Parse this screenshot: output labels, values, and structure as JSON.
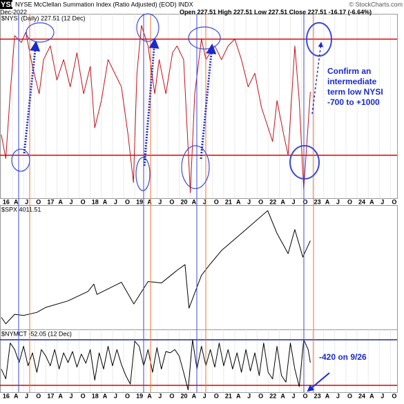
{
  "header": {
    "symbol": "YSI",
    "title": "NYSE McClellan Summation Index (Ratio Adjusted) (EOD) INDX",
    "date": "Dec-2022",
    "quote": "Open 227.51  High 227.51  Low 227.51  Close 227.51  -16.17 (-6.64%)",
    "credit": "© StockCharts.com"
  },
  "chart_data": [
    {
      "type": "line",
      "ylim": [
        -1330,
        1370
      ],
      "xlim": [
        2015.97,
        2024.9
      ],
      "grid": true,
      "x": [
        2016.0,
        2016.1,
        2016.2,
        2016.3,
        2016.45,
        2016.55,
        2016.7,
        2016.85,
        2016.95,
        2017.1,
        2017.25,
        2017.4,
        2017.55,
        2017.7,
        2017.85,
        2018.0,
        2018.1,
        2018.25,
        2018.4,
        2018.55,
        2018.7,
        2018.85,
        2018.97,
        2019.05,
        2019.15,
        2019.3,
        2019.45,
        2019.55,
        2019.7,
        2019.85,
        2019.95,
        2020.1,
        2020.2,
        2020.25,
        2020.35,
        2020.5,
        2020.6,
        2020.8,
        2020.95,
        2021.1,
        2021.25,
        2021.4,
        2021.55,
        2021.7,
        2021.85,
        2022.0,
        2022.1,
        2022.2,
        2022.35,
        2022.45,
        2022.6,
        2022.7,
        2022.8,
        2022.95
      ],
      "series": [
        {
          "name": "$NYSI (Daily) 227.51 (12 Dec)",
          "color": "#c0101a",
          "values": [
            -400,
            -750,
            200,
            1050,
            950,
            1100,
            600,
            200,
            700,
            900,
            400,
            700,
            300,
            800,
            200,
            600,
            -300,
            100,
            700,
            500,
            300,
            -400,
            -1100,
            500,
            1200,
            900,
            200,
            700,
            200,
            800,
            900,
            700,
            -600,
            -1250,
            200,
            1000,
            700,
            900,
            700,
            900,
            1000,
            700,
            300,
            500,
            0,
            -300,
            -500,
            100,
            -400,
            -700,
            900,
            100,
            -1200,
            227.51
          ]
        }
      ],
      "hlines": [
        {
          "value": 1000,
          "color": "#e00000"
        },
        {
          "value": -700,
          "color": "#e00000"
        }
      ],
      "xticks": [
        {
          "value": 2016,
          "label": "16"
        },
        {
          "value": 2016.25,
          "label": "A"
        },
        {
          "value": 2016.5,
          "label": "J"
        },
        {
          "value": 2016.75,
          "label": "O"
        },
        {
          "value": 2017,
          "label": "17"
        },
        {
          "value": 2017.25,
          "label": "A"
        },
        {
          "value": 2017.5,
          "label": "J"
        },
        {
          "value": 2017.75,
          "label": "O"
        },
        {
          "value": 2018,
          "label": "18"
        },
        {
          "value": 2018.25,
          "label": "A"
        },
        {
          "value": 2018.5,
          "label": "J"
        },
        {
          "value": 2018.75,
          "label": "O"
        },
        {
          "value": 2019,
          "label": "19"
        },
        {
          "value": 2019.25,
          "label": "A"
        },
        {
          "value": 2019.5,
          "label": "J"
        },
        {
          "value": 2019.75,
          "label": "O"
        },
        {
          "value": 2020,
          "label": "20"
        },
        {
          "value": 2020.25,
          "label": "A"
        },
        {
          "value": 2020.5,
          "label": "J"
        },
        {
          "value": 2020.75,
          "label": "O"
        },
        {
          "value": 2021,
          "label": "21"
        },
        {
          "value": 2021.25,
          "label": "A"
        },
        {
          "value": 2021.5,
          "label": "J"
        },
        {
          "value": 2021.75,
          "label": "O"
        },
        {
          "value": 2022,
          "label": "22"
        },
        {
          "value": 2022.25,
          "label": "A"
        },
        {
          "value": 2022.5,
          "label": "J"
        },
        {
          "value": 2022.75,
          "label": "O"
        },
        {
          "value": 2023,
          "label": "23"
        },
        {
          "value": 2023.25,
          "label": "A"
        },
        {
          "value": 2023.5,
          "label": "J"
        },
        {
          "value": 2023.75,
          "label": "O"
        },
        {
          "value": 2024,
          "label": "24"
        },
        {
          "value": 2024.25,
          "label": "A"
        },
        {
          "value": 2024.5,
          "label": "J"
        },
        {
          "value": 2024.75,
          "label": "O"
        }
      ],
      "annotation": [
        "Confirm an",
        "intermediate",
        "term low NYSI",
        "-700 to +1000"
      ]
    },
    {
      "type": "line",
      "ylim": [
        1683,
        4941
      ],
      "xlim": [
        2015.97,
        2024.9
      ],
      "grid": true,
      "x": [
        2016.0,
        2016.1,
        2016.3,
        2016.5,
        2016.8,
        2017.0,
        2017.5,
        2017.95,
        2018.08,
        2018.15,
        2018.7,
        2018.98,
        2019.3,
        2019.6,
        2019.95,
        2020.13,
        2020.22,
        2020.5,
        2020.7,
        2020.95,
        2021.5,
        2021.99,
        2022.2,
        2022.45,
        2022.6,
        2022.78,
        2022.95
      ],
      "series": [
        {
          "name": "$SPX 4011.51",
          "color": "#000000",
          "values": [
            2000,
            1830,
            2080,
            2050,
            2130,
            2260,
            2430,
            2680,
            2870,
            2600,
            2920,
            2350,
            2940,
            2900,
            3230,
            3380,
            2240,
            3100,
            3400,
            3750,
            4300,
            4796,
            4200,
            3670,
            4300,
            3580,
            4011.51
          ]
        }
      ]
    },
    {
      "type": "line",
      "ylim": [
        -506,
        459
      ],
      "xlim": [
        2015.97,
        2024.9
      ],
      "grid": true,
      "x": [
        2016.0,
        2016.1,
        2016.2,
        2016.3,
        2016.4,
        2016.5,
        2016.6,
        2016.7,
        2016.8,
        2016.9,
        2017.0,
        2017.1,
        2017.2,
        2017.3,
        2017.4,
        2017.5,
        2017.6,
        2017.7,
        2017.8,
        2017.9,
        2018.0,
        2018.1,
        2018.2,
        2018.3,
        2018.4,
        2018.5,
        2018.6,
        2018.7,
        2018.8,
        2018.9,
        2019.0,
        2019.1,
        2019.2,
        2019.3,
        2019.4,
        2019.5,
        2019.6,
        2019.7,
        2019.8,
        2019.9,
        2020.0,
        2020.1,
        2020.2,
        2020.3,
        2020.4,
        2020.5,
        2020.6,
        2020.7,
        2020.8,
        2020.9,
        2021.0,
        2021.1,
        2021.2,
        2021.3,
        2021.4,
        2021.5,
        2021.6,
        2021.7,
        2021.8,
        2021.9,
        2022.0,
        2022.1,
        2022.2,
        2022.3,
        2022.4,
        2022.5,
        2022.6,
        2022.7,
        2022.8,
        2022.9,
        2022.95
      ],
      "series": [
        {
          "name": "$NYMCT -52.05 (12 Dec)",
          "color": "#000000",
          "values": [
            -150,
            -300,
            250,
            150,
            -50,
            200,
            -100,
            100,
            -200,
            150,
            50,
            -100,
            150,
            -150,
            100,
            -50,
            120,
            -120,
            80,
            -60,
            150,
            -320,
            100,
            -150,
            200,
            -100,
            150,
            -80,
            -250,
            -380,
            280,
            200,
            -100,
            150,
            -200,
            180,
            -150,
            120,
            100,
            150,
            50,
            -200,
            -470,
            300,
            -150,
            200,
            -100,
            150,
            -120,
            250,
            -100,
            150,
            -150,
            100,
            -200,
            150,
            -180,
            100,
            -250,
            250,
            -200,
            -300,
            200,
            -250,
            -350,
            250,
            -150,
            -420,
            300,
            150,
            -52.05
          ]
        }
      ],
      "hlines": [
        {
          "value": 300,
          "color": "#1f2a8c"
        },
        {
          "value": -400,
          "color": "#e00000"
        }
      ],
      "xticks": [
        {
          "value": 2016,
          "label": "16"
        },
        {
          "value": 2016.25,
          "label": "A"
        },
        {
          "value": 2016.5,
          "label": "J"
        },
        {
          "value": 2016.75,
          "label": "O"
        },
        {
          "value": 2017,
          "label": "17"
        },
        {
          "value": 2017.25,
          "label": "A"
        },
        {
          "value": 2017.5,
          "label": "J"
        },
        {
          "value": 2017.75,
          "label": "O"
        },
        {
          "value": 2018,
          "label": "18"
        },
        {
          "value": 2018.25,
          "label": "A"
        },
        {
          "value": 2018.5,
          "label": "J"
        },
        {
          "value": 2018.75,
          "label": "O"
        },
        {
          "value": 2019,
          "label": "19"
        },
        {
          "value": 2019.25,
          "label": "A"
        },
        {
          "value": 2019.5,
          "label": "J"
        },
        {
          "value": 2019.75,
          "label": "O"
        },
        {
          "value": 2020,
          "label": "20"
        },
        {
          "value": 2020.25,
          "label": "A"
        },
        {
          "value": 2020.5,
          "label": "J"
        },
        {
          "value": 2020.75,
          "label": "O"
        },
        {
          "value": 2021,
          "label": "21"
        },
        {
          "value": 2021.25,
          "label": "A"
        },
        {
          "value": 2021.5,
          "label": "J"
        },
        {
          "value": 2021.75,
          "label": "O"
        },
        {
          "value": 2022,
          "label": "22"
        },
        {
          "value": 2022.25,
          "label": "A"
        },
        {
          "value": 2022.5,
          "label": "J"
        },
        {
          "value": 2022.75,
          "label": "O"
        },
        {
          "value": 2023,
          "label": "23"
        },
        {
          "value": 2023.25,
          "label": "A"
        },
        {
          "value": 2023.5,
          "label": "J"
        },
        {
          "value": 2023.75,
          "label": "O"
        },
        {
          "value": 2024,
          "label": "24"
        },
        {
          "value": 2024.25,
          "label": "A"
        },
        {
          "value": 2024.5,
          "label": "J"
        },
        {
          "value": 2024.75,
          "label": "O"
        }
      ],
      "annotation": [
        "-420 on 9/26"
      ]
    }
  ]
}
